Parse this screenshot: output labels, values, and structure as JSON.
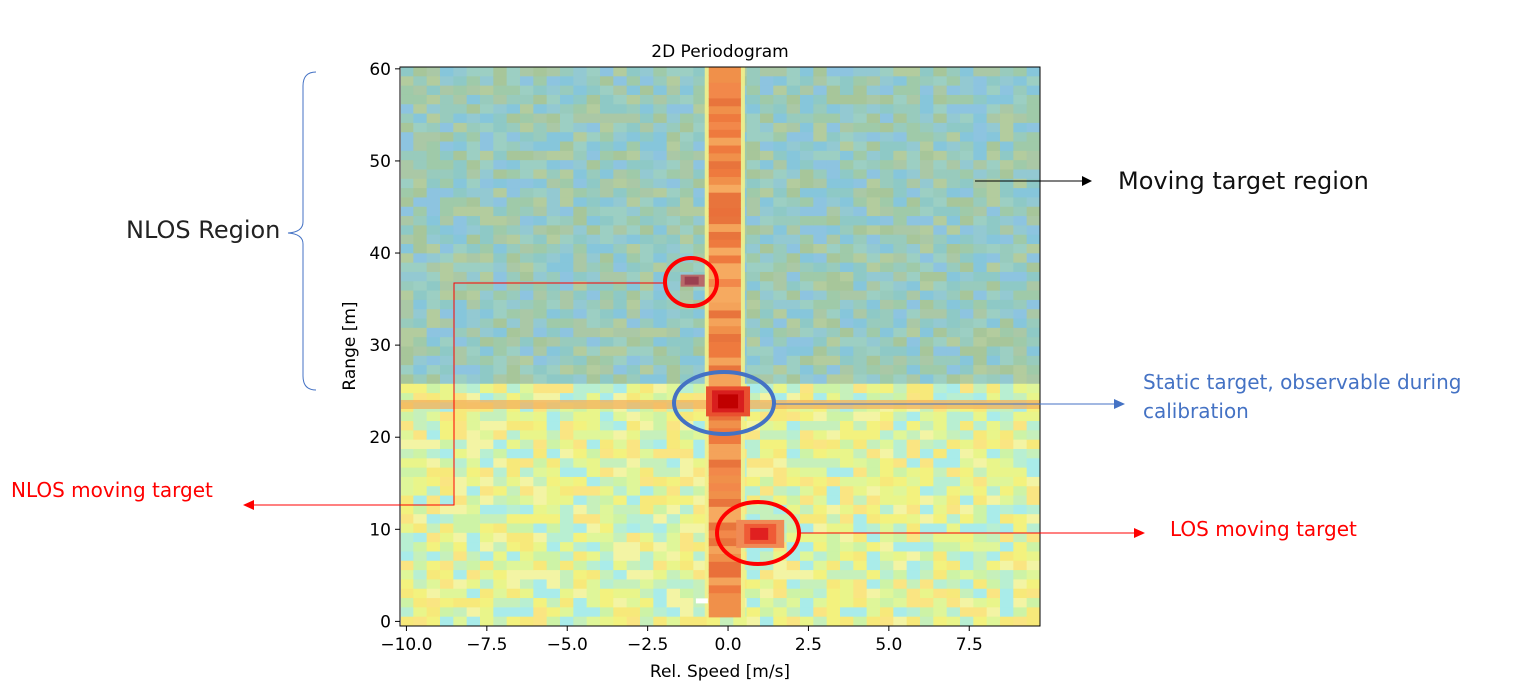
{
  "chart_data": {
    "type": "heatmap",
    "title": "2D Periodogram",
    "xlabel": "Rel. Speed [m/s]",
    "ylabel": "Range [m]",
    "xlim": [
      -10.2,
      9.7
    ],
    "ylim": [
      -0.5,
      60.2
    ],
    "xticks": [
      -10.0,
      -7.5,
      -5.0,
      -2.5,
      0.0,
      2.5,
      5.0,
      7.5
    ],
    "xtick_labels": [
      "−10.0",
      "−7.5",
      "−5.0",
      "−2.5",
      "0.0",
      "2.5",
      "5.0",
      "7.5"
    ],
    "yticks": [
      0,
      10,
      20,
      30,
      40,
      50,
      60
    ],
    "ytick_labels": [
      "0",
      "10",
      "20",
      "30",
      "40",
      "50",
      "60"
    ],
    "grid": false,
    "regions": [
      {
        "y_range": [
          25.5,
          60.2
        ],
        "tone": "blue-green"
      },
      {
        "y_range": [
          -0.5,
          25.5
        ],
        "tone": "yellow-green"
      }
    ],
    "features": [
      {
        "x_range": [
          -0.6,
          0.4
        ],
        "y_range": [
          0.5,
          60.2
        ],
        "intensity": "high"
      },
      {
        "x": 0.0,
        "y": 24.0,
        "intensity": "peak"
      },
      {
        "x": 1.0,
        "y": 9.5,
        "intensity": "peak"
      },
      {
        "x": -1.1,
        "y": 37.0,
        "intensity": "medium"
      },
      {
        "x_range": [
          -10.2,
          9.7
        ],
        "y": 23.5,
        "intensity": "medium"
      }
    ],
    "annotations": [
      {
        "id": "nlos_region",
        "text": "NLOS Region",
        "color": "#222222"
      },
      {
        "id": "moving_region",
        "text": "Moving target region",
        "color": "#111111"
      },
      {
        "id": "static_target",
        "lines": [
          "Static target, observable during",
          "calibration"
        ],
        "color": "#4472c4"
      },
      {
        "id": "nlos_moving",
        "text": "NLOS moving target",
        "color": "#ff0000"
      },
      {
        "id": "los_moving",
        "text": "LOS moving target",
        "color": "#ff0000"
      }
    ]
  }
}
